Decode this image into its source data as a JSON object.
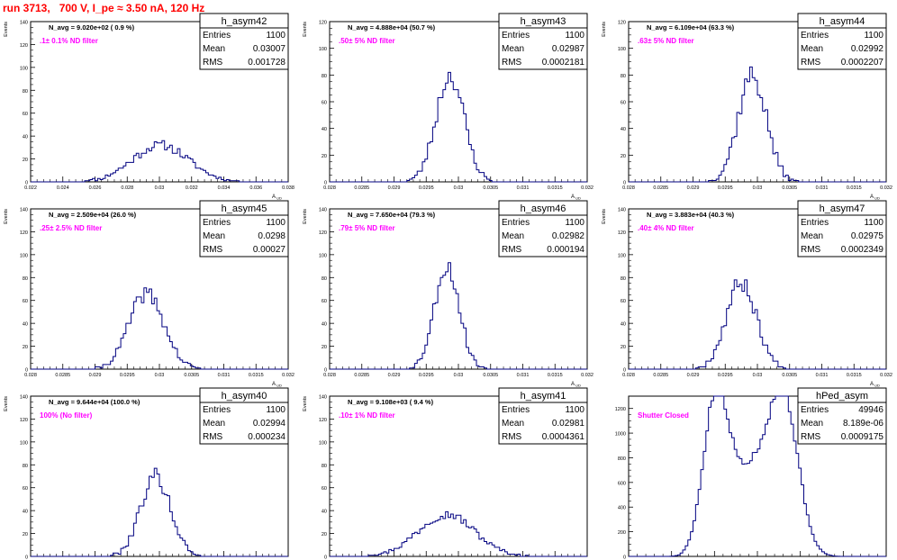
{
  "figure": {
    "title": "run 3713,   700 V, I_pe ≈ 3.50 nA, 120 Hz",
    "colors": {
      "hist": "#000080",
      "title": "#ff0000",
      "filter_label": "#ff00ff",
      "navg": "#000000"
    }
  },
  "chart_data": [
    {
      "type": "histogram",
      "name": "h_asym42",
      "navg_label": "N_avg = 9.020e+02 ( 0.9 %)",
      "filter_label": ".1± 0.1% ND filter",
      "stats": {
        "entries": "1100",
        "mean": "0.03007",
        "rms": "0.001728"
      },
      "xlabel": "A_UD",
      "ylabel": "Events",
      "xlim": [
        0.022,
        0.038
      ],
      "ylim": [
        0,
        140
      ],
      "xticks": [
        "0.022",
        "0.024",
        "0.026",
        "0.028",
        "0.03",
        "0.032",
        "0.034",
        "0.036",
        "0.038"
      ],
      "yticks": [
        "0",
        "20",
        "40",
        "60",
        "80",
        "100",
        "120",
        "140"
      ],
      "profile": {
        "mean": 0.03007,
        "sigma": 0.00175,
        "peak": 32,
        "noise": 4,
        "seed": 11
      }
    },
    {
      "type": "histogram",
      "name": "h_asym43",
      "navg_label": "N_avg = 4.888e+04 (50.7 %)",
      "filter_label": ".50± 5% ND filter",
      "stats": {
        "entries": "1100",
        "mean": "0.02987",
        "rms": "0.0002181"
      },
      "xlabel": "A_UD",
      "ylabel": "Events",
      "xlim": [
        0.028,
        0.032
      ],
      "ylim": [
        0,
        120
      ],
      "xticks": [
        "0.028",
        "0.0285",
        "0.029",
        "0.0295",
        "0.03",
        "0.0305",
        "0.031",
        "0.0315",
        "0.032"
      ],
      "yticks": [
        "0",
        "20",
        "40",
        "60",
        "80",
        "100",
        "120"
      ],
      "profile": {
        "mean": 0.02987,
        "sigma": 0.000218,
        "peak": 80,
        "noise": 8,
        "seed": 23
      }
    },
    {
      "type": "histogram",
      "name": "h_asym44",
      "navg_label": "N_avg = 6.109e+04 (63.3 %)",
      "filter_label": ".63± 5% ND filter",
      "stats": {
        "entries": "1100",
        "mean": "0.02992",
        "rms": "0.0002207"
      },
      "xlabel": "A_UD",
      "ylabel": "Events",
      "xlim": [
        0.028,
        0.032
      ],
      "ylim": [
        0,
        120
      ],
      "xticks": [
        "0.028",
        "0.0285",
        "0.029",
        "0.0295",
        "0.03",
        "0.0305",
        "0.031",
        "0.0315",
        "0.032"
      ],
      "yticks": [
        "0",
        "20",
        "40",
        "60",
        "80",
        "100",
        "120"
      ],
      "profile": {
        "mean": 0.02992,
        "sigma": 0.00022,
        "peak": 80,
        "noise": 9,
        "seed": 37
      }
    },
    {
      "type": "histogram",
      "name": "h_asym45",
      "navg_label": "N_avg = 2.509e+04 (26.0 %)",
      "filter_label": ".25± 2.5% ND filter",
      "stats": {
        "entries": "1100",
        "mean": "0.0298",
        "rms": "0.00027"
      },
      "xlabel": "A_UD",
      "ylabel": "Events",
      "xlim": [
        0.028,
        0.032
      ],
      "ylim": [
        0,
        140
      ],
      "xticks": [
        "0.028",
        "0.0285",
        "0.029",
        "0.0295",
        "0.03",
        "0.0305",
        "0.031",
        "0.0315",
        "0.032"
      ],
      "yticks": [
        "0",
        "20",
        "40",
        "60",
        "80",
        "100",
        "120",
        "140"
      ],
      "profile": {
        "mean": 0.0298,
        "sigma": 0.00027,
        "peak": 66,
        "noise": 7,
        "seed": 41
      }
    },
    {
      "type": "histogram",
      "name": "h_asym46",
      "navg_label": "N_avg = 7.650e+04 (79.3 %)",
      "filter_label": ".79± 5% ND filter",
      "stats": {
        "entries": "1100",
        "mean": "0.02982",
        "rms": "0.000194"
      },
      "xlabel": "A_UD",
      "ylabel": "Events",
      "xlim": [
        0.028,
        0.032
      ],
      "ylim": [
        0,
        140
      ],
      "xticks": [
        "0.028",
        "0.0285",
        "0.029",
        "0.0295",
        "0.03",
        "0.0305",
        "0.031",
        "0.0315",
        "0.032"
      ],
      "yticks": [
        "0",
        "20",
        "40",
        "60",
        "80",
        "100",
        "120",
        "140"
      ],
      "profile": {
        "mean": 0.02982,
        "sigma": 0.000194,
        "peak": 90,
        "noise": 8,
        "seed": 53
      }
    },
    {
      "type": "histogram",
      "name": "h_asym47",
      "navg_label": "N_avg = 3.883e+04 (40.3 %)",
      "filter_label": ".40± 4% ND filter",
      "stats": {
        "entries": "1100",
        "mean": "0.02975",
        "rms": "0.0002349"
      },
      "xlabel": "A_UD",
      "ylabel": "Events",
      "xlim": [
        0.028,
        0.032
      ],
      "ylim": [
        0,
        140
      ],
      "xticks": [
        "0.028",
        "0.0285",
        "0.029",
        "0.0295",
        "0.03",
        "0.0305",
        "0.031",
        "0.0315",
        "0.032"
      ],
      "yticks": [
        "0",
        "20",
        "40",
        "60",
        "80",
        "100",
        "120",
        "140"
      ],
      "profile": {
        "mean": 0.02975,
        "sigma": 0.000235,
        "peak": 76,
        "noise": 8,
        "seed": 67
      }
    },
    {
      "type": "histogram",
      "name": "h_asym40",
      "navg_label": "N_avg = 9.644e+04 (100.0 %)",
      "filter_label": "100% (No filter)",
      "stats": {
        "entries": "1100",
        "mean": "0.02994",
        "rms": "0.000234"
      },
      "xlabel": "A_UD",
      "ylabel": "Events",
      "xlim": [
        0.028,
        0.032
      ],
      "ylim": [
        0,
        140
      ],
      "xticks": [
        "0.028",
        "0.0285",
        "0.029",
        "0.0295",
        "0.03",
        "0.0305",
        "0.031",
        "0.0315",
        "0.032"
      ],
      "yticks": [
        "0",
        "20",
        "40",
        "60",
        "80",
        "100",
        "120",
        "140"
      ],
      "profile": {
        "mean": 0.02994,
        "sigma": 0.000234,
        "peak": 70,
        "noise": 7,
        "seed": 79
      }
    },
    {
      "type": "histogram",
      "name": "h_asym41",
      "navg_label": "N_avg = 9.108e+03 ( 9.4 %)",
      "filter_label": ".10± 1% ND filter",
      "stats": {
        "entries": "1100",
        "mean": "0.02981",
        "rms": "0.0004361"
      },
      "xlabel": "A_UD",
      "ylabel": "Events",
      "xlim": [
        0.028,
        0.032
      ],
      "ylim": [
        0,
        140
      ],
      "xticks": [
        "0.028",
        "0.0285",
        "0.029",
        "0.0295",
        "0.03",
        "0.0305",
        "0.031",
        "0.0315",
        "0.032"
      ],
      "yticks": [
        "0",
        "20",
        "40",
        "60",
        "80",
        "100",
        "120",
        "140"
      ],
      "profile": {
        "mean": 0.02981,
        "sigma": 0.000436,
        "peak": 37,
        "noise": 4,
        "seed": 97
      }
    },
    {
      "type": "histogram",
      "name": "hPed_asym",
      "navg_label": "",
      "filter_label": "Shutter Closed",
      "stats": {
        "entries": "49946",
        "mean": "8.189e-06",
        "rms": "0.0009175"
      },
      "xlabel": "",
      "ylabel": "",
      "xlim": [
        -0.003,
        0.003
      ],
      "ylim": [
        0,
        1300
      ],
      "xticks": [
        "-0.003",
        "-0.002",
        "-0.001",
        "0",
        "0.001",
        "0.002",
        "0.003"
      ],
      "yticks": [
        "0",
        "200",
        "400",
        "600",
        "800",
        "1000",
        "1200"
      ],
      "profile": {
        "pedestal": true,
        "seed": 5
      }
    }
  ]
}
